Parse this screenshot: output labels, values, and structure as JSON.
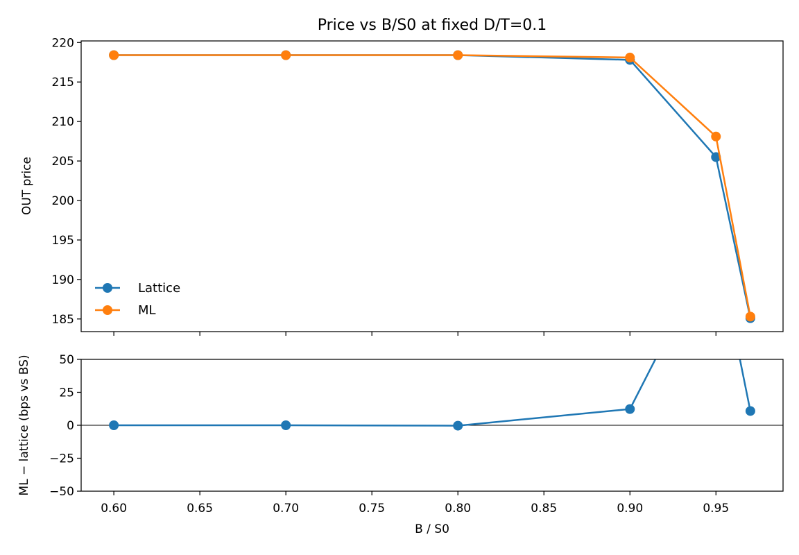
{
  "chart_data": [
    {
      "type": "line",
      "title": "Price vs B/S0 at fixed D/T=0.1",
      "xlabel": "",
      "ylabel": "OUT price",
      "x": [
        0.6,
        0.7,
        0.8,
        0.9,
        0.95,
        0.97
      ],
      "xlim": [
        0.581,
        0.989
      ],
      "ylim": [
        183.4,
        220.2
      ],
      "yticks": [
        185,
        190,
        195,
        200,
        205,
        210,
        215,
        220
      ],
      "yticklabels": [
        "185",
        "190",
        "195",
        "200",
        "205",
        "210",
        "215",
        "220"
      ],
      "xticks": [
        0.6,
        0.65,
        0.7,
        0.75,
        0.8,
        0.85,
        0.9,
        0.95
      ],
      "grid": false,
      "legend_position": "lower-left",
      "series": [
        {
          "name": "Lattice",
          "color": "#1f77b4",
          "values": [
            218.4,
            218.4,
            218.4,
            217.8,
            205.5,
            185.1
          ]
        },
        {
          "name": "ML",
          "color": "#ff7f0e",
          "values": [
            218.4,
            218.4,
            218.4,
            218.1,
            208.1,
            185.3
          ]
        }
      ]
    },
    {
      "type": "line",
      "title": "",
      "xlabel": "B / S0",
      "ylabel": "ML − lattice (bps vs BS)",
      "x": [
        0.6,
        0.7,
        0.8,
        0.9,
        0.95,
        0.97
      ],
      "xlim": [
        0.581,
        0.989
      ],
      "ylim": [
        -50,
        50
      ],
      "yticks": [
        -50,
        -25,
        0,
        25,
        50
      ],
      "yticklabels": [
        "−50",
        "−25",
        "0",
        "25",
        "50"
      ],
      "xticks": [
        0.6,
        0.65,
        0.7,
        0.75,
        0.8,
        0.85,
        0.9,
        0.95
      ],
      "xticklabels": [
        "0.60",
        "0.65",
        "0.70",
        "0.75",
        "0.80",
        "0.85",
        "0.90",
        "0.95"
      ],
      "grid": false,
      "reference_line_y": 0,
      "series": [
        {
          "color": "#1f77b4",
          "values": [
            0,
            0,
            -0.3,
            12.3,
            140,
            10.8
          ]
        }
      ]
    }
  ]
}
